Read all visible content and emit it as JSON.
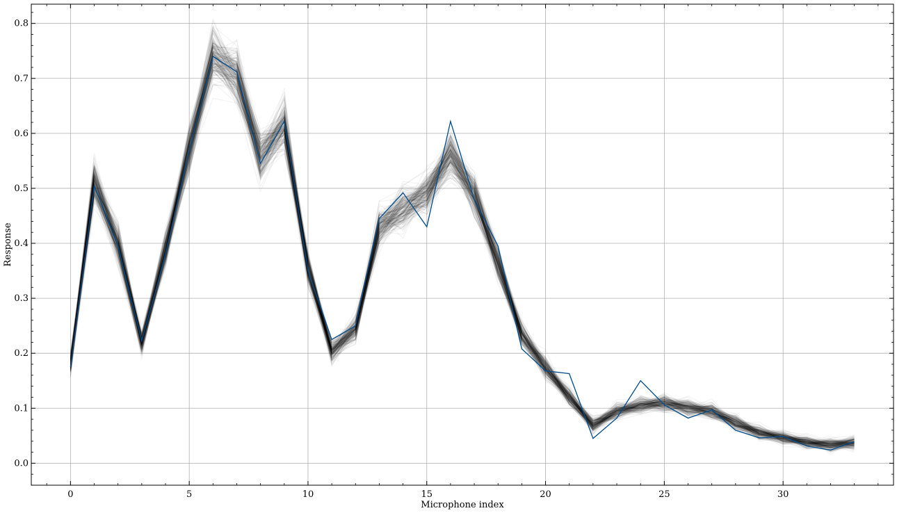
{
  "chart_data": {
    "type": "line",
    "title": "",
    "xlabel": "Microphone index",
    "ylabel": "Response",
    "xlim": [
      -1.65,
      34.65
    ],
    "ylim": [
      -0.04,
      0.835
    ],
    "xticks": [
      0,
      5,
      10,
      15,
      20,
      25,
      30
    ],
    "yticks": [
      0.0,
      0.1,
      0.2,
      0.3,
      0.4,
      0.5,
      0.6,
      0.7,
      0.8
    ],
    "grid": true,
    "legend": "none",
    "ensemble": {
      "color": "#000000",
      "count": 220,
      "mean": [
        0.18,
        0.51,
        0.4,
        0.22,
        0.39,
        0.575,
        0.74,
        0.705,
        0.56,
        0.615,
        0.355,
        0.205,
        0.245,
        0.43,
        0.465,
        0.49,
        0.565,
        0.49,
        0.365,
        0.235,
        0.175,
        0.12,
        0.07,
        0.095,
        0.105,
        0.11,
        0.102,
        0.094,
        0.074,
        0.056,
        0.046,
        0.038,
        0.034,
        0.037
      ]
    },
    "series": [
      {
        "color": "#004c8c",
        "x": [
          0,
          1,
          2,
          3,
          4,
          5,
          6,
          7,
          8,
          9,
          10,
          11,
          12,
          13,
          14,
          15,
          16,
          17,
          18,
          19,
          20,
          21,
          22,
          23,
          24,
          25,
          26,
          27,
          28,
          29,
          30,
          31,
          32,
          33
        ],
        "values": [
          0.175,
          0.505,
          0.395,
          0.222,
          0.38,
          0.57,
          0.74,
          0.712,
          0.545,
          0.622,
          0.35,
          0.225,
          0.25,
          0.445,
          0.492,
          0.43,
          0.622,
          0.48,
          0.395,
          0.208,
          0.168,
          0.163,
          0.045,
          0.082,
          0.15,
          0.106,
          0.082,
          0.097,
          0.06,
          0.046,
          0.049,
          0.031,
          0.024,
          0.039
        ]
      }
    ]
  }
}
